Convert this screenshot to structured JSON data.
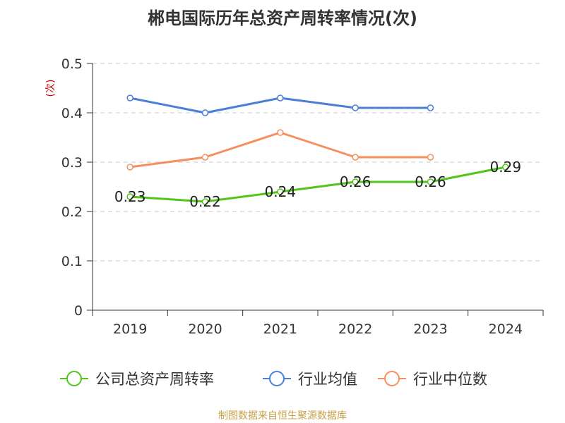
{
  "title": "郴电国际历年总资产周转率情况(次)",
  "footer": "制图数据来自恒生聚源数据库",
  "chart_data": {
    "type": "line",
    "title": "郴电国际历年总资产周转率情况(次)",
    "ylabel": "(次)",
    "xlabel": "",
    "categories": [
      "2019",
      "2020",
      "2021",
      "2022",
      "2023",
      "2024"
    ],
    "ylim": [
      0,
      0.5
    ],
    "yticks": [
      "0",
      "0.1",
      "0.2",
      "0.3",
      "0.4",
      "0.5"
    ],
    "grid": true,
    "legend_position": "bottom",
    "series": [
      {
        "name": "公司总资产周转率",
        "values": [
          0.23,
          0.22,
          0.24,
          0.26,
          0.26,
          0.29
        ],
        "color": "#52c41a",
        "labels": [
          "0.23",
          "0.22",
          "0.24",
          "0.26",
          "0.26",
          "0.29"
        ]
      },
      {
        "name": "行业均值",
        "values": [
          0.43,
          0.4,
          0.43,
          0.41,
          0.41,
          null
        ],
        "color": "#4a7fd8"
      },
      {
        "name": "行业中位数",
        "values": [
          0.29,
          0.31,
          0.36,
          0.31,
          0.31,
          null
        ],
        "color": "#f58f5c"
      }
    ]
  }
}
